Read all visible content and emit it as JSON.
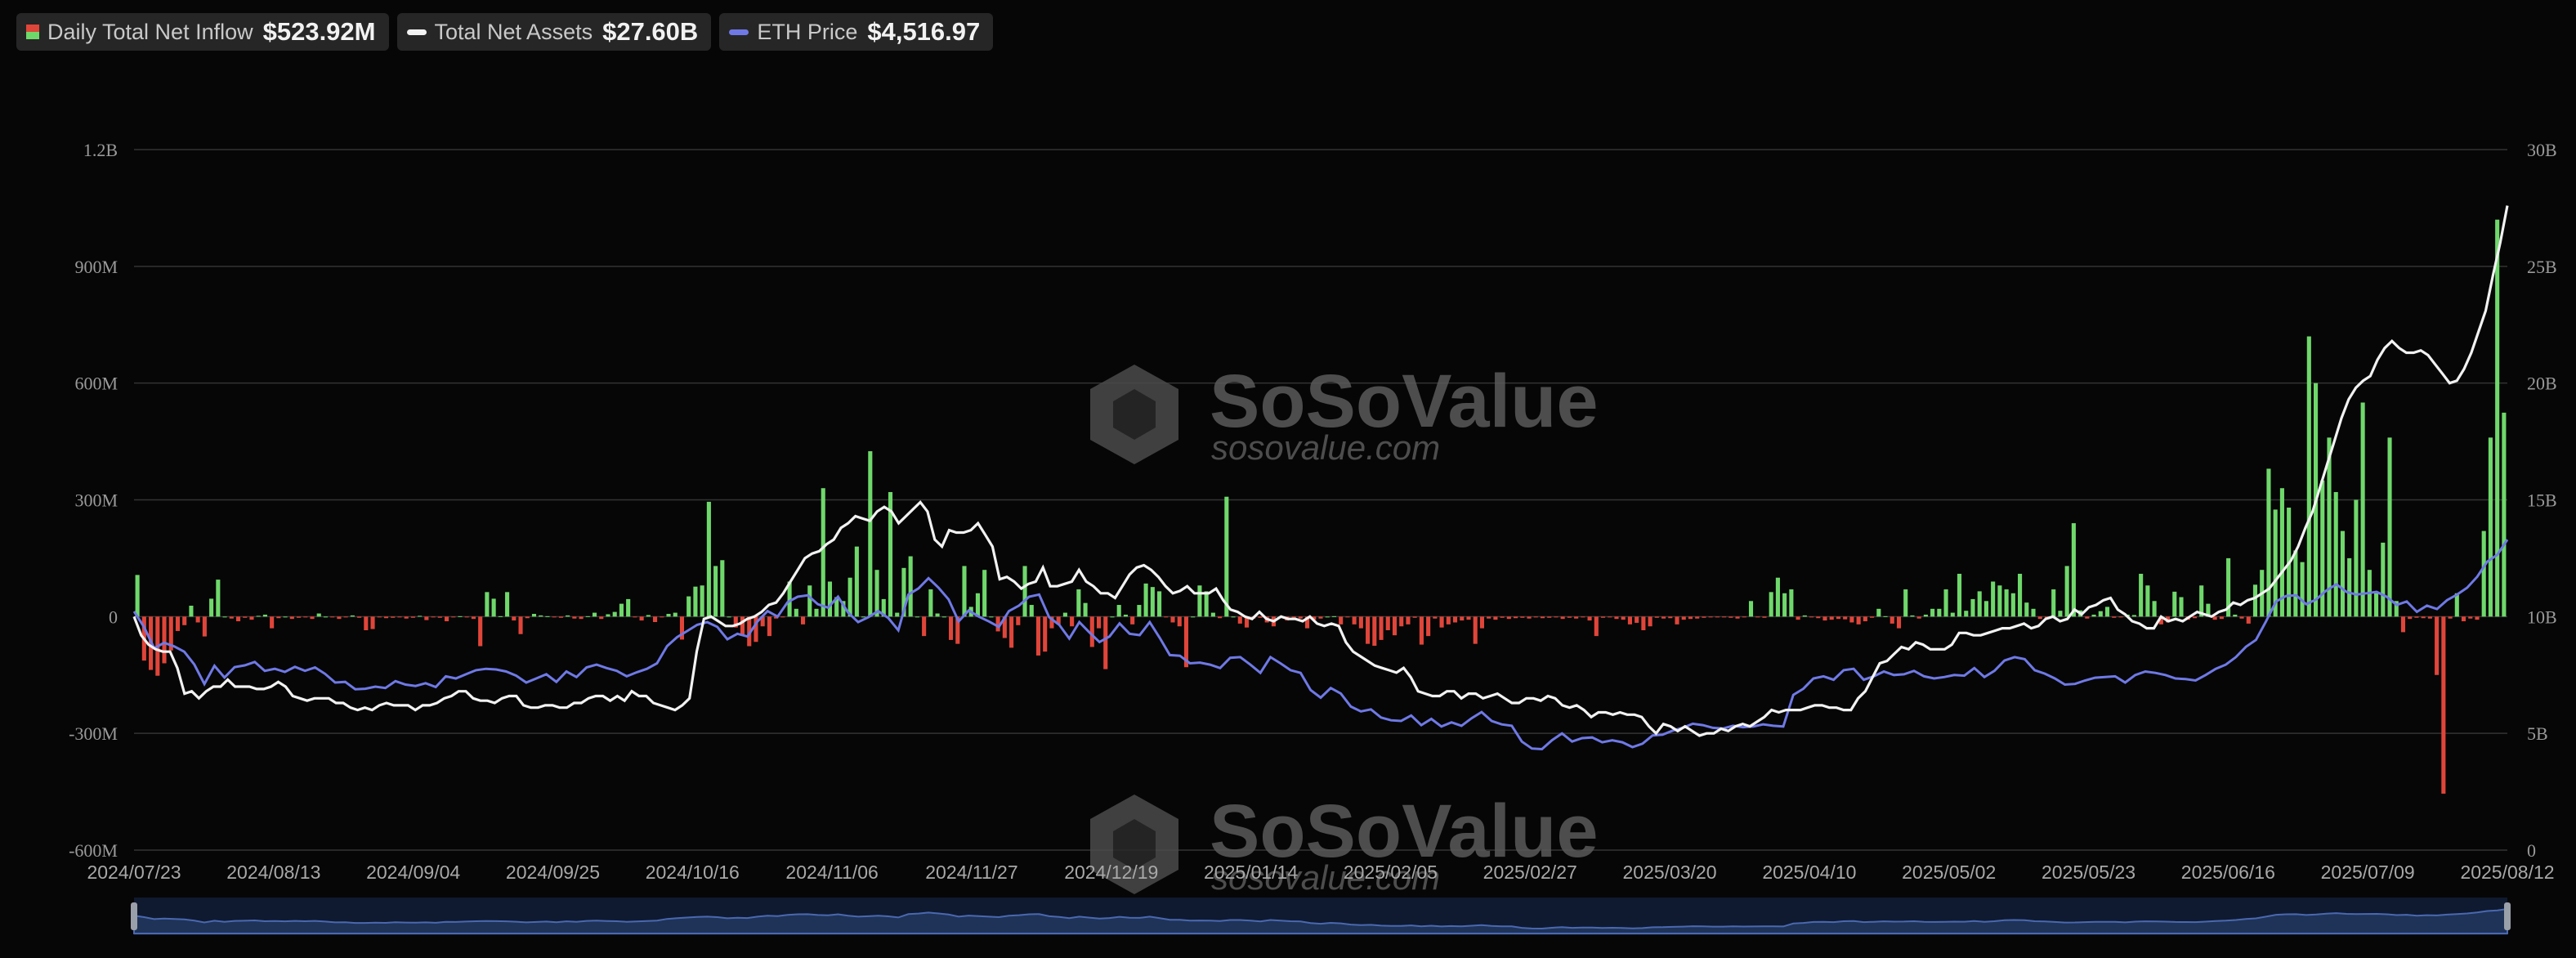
{
  "legend": {
    "inflow_label": "Daily Total Net Inflow",
    "inflow_value": "$523.92M",
    "assets_label": "Total Net Assets",
    "assets_value": "$27.60B",
    "price_label": "ETH Price",
    "price_value": "$4,516.97"
  },
  "watermark": {
    "brand": "SoSoValue",
    "site": "sosovalue.com"
  },
  "colors": {
    "positive": "#6fd86b",
    "negative": "#e0453a",
    "assets_line": "#f2f2f2",
    "price_line": "#6f79e6",
    "navigator_fill": "#1e3357"
  },
  "chart_data": {
    "type": "bar+line",
    "date_range": [
      "2024/07/23",
      "2025/08/12"
    ],
    "x_tick_labels": [
      "2024/07/23",
      "2024/08/13",
      "2024/09/04",
      "2024/09/25",
      "2024/10/16",
      "2024/11/06",
      "2024/11/27",
      "2024/12/19",
      "2025/01/14",
      "2025/02/05",
      "2025/02/27",
      "2025/03/20",
      "2025/04/10",
      "2025/05/02",
      "2025/05/23",
      "2025/06/16",
      "2025/07/09",
      "2025/08/12"
    ],
    "y_left": {
      "ticks": [
        "-600M",
        "-300M",
        "0",
        "300M",
        "600M",
        "900M",
        "1.2B"
      ],
      "range_millions": [
        -600,
        1200
      ]
    },
    "y_right": {
      "ticks": [
        "0",
        "5B",
        "10B",
        "15B",
        "20B",
        "25B",
        "30B"
      ],
      "range_billions": [
        0,
        30
      ]
    },
    "grid": true,
    "legend_position": "top-left",
    "series": [
      {
        "name": "Daily Total Net Inflow",
        "type": "bar",
        "unit": "M USD",
        "values": [
          107,
          -113,
          -137,
          -152,
          -120,
          -87,
          -37,
          -22,
          28,
          -15,
          -51,
          46,
          95,
          0,
          -5,
          -12,
          -3,
          -8,
          2,
          5,
          -30,
          -4,
          0,
          -6,
          -3,
          -2,
          -6,
          8,
          0,
          -2,
          -6,
          -2,
          3,
          -3,
          -35,
          -32,
          -2,
          -4,
          -3,
          -1,
          -5,
          -3,
          2,
          -9,
          -1,
          -3,
          -12,
          -2,
          1,
          -2,
          -6,
          -76,
          63,
          46,
          1,
          63,
          -10,
          -45,
          -4,
          7,
          3,
          1,
          -2,
          -3,
          3,
          -5,
          -6,
          1,
          10,
          -6,
          6,
          12,
          33,
          45,
          -1,
          -10,
          4,
          -14,
          -2,
          7,
          10,
          -59,
          52,
          77,
          80,
          295,
          130,
          145,
          0,
          -28,
          -46,
          -76,
          -65,
          -25,
          -50,
          -5,
          -1,
          90,
          20,
          -20,
          80,
          20,
          330,
          90,
          50,
          40,
          100,
          180,
          0,
          425,
          120,
          45,
          320,
          10,
          125,
          155,
          0,
          -50,
          70,
          8,
          0,
          -60,
          -70,
          130,
          25,
          60,
          120,
          0,
          -38,
          -55,
          -80,
          -22,
          130,
          30,
          -100,
          -90,
          -30,
          -20,
          10,
          -25,
          70,
          35,
          -78,
          -30,
          -135,
          0,
          30,
          5,
          -20,
          30,
          85,
          76,
          65,
          -2,
          -15,
          -25,
          -130,
          0,
          80,
          65,
          10,
          -4,
          308,
          0,
          -18,
          -28,
          -5,
          -3,
          -15,
          -25,
          -3,
          -10,
          -7,
          -5,
          -30,
          -8,
          -5,
          0,
          1,
          -20,
          -2,
          -20,
          -30,
          -70,
          -75,
          -60,
          -35,
          -48,
          -25,
          -20,
          -3,
          -72,
          -50,
          -5,
          -28,
          -20,
          -15,
          -10,
          -8,
          -70,
          -30,
          -5,
          -8,
          -3,
          -6,
          -4,
          -3,
          -5,
          -2,
          -4,
          -3,
          -2,
          -6,
          -3,
          -5,
          -2,
          -10,
          -50,
          -3,
          -2,
          -6,
          -8,
          -20,
          -16,
          -35,
          -25,
          -3,
          -5,
          -4,
          -20,
          -8,
          -6,
          -5,
          -3,
          -2,
          -1,
          -2,
          -3,
          -5,
          -1,
          40,
          -2,
          -3,
          63,
          100,
          60,
          70,
          -8,
          3,
          -2,
          -4,
          -10,
          -8,
          -6,
          -7,
          -15,
          -20,
          -12,
          -3,
          20,
          1,
          -18,
          -30,
          70,
          3,
          -5,
          5,
          20,
          20,
          70,
          10,
          110,
          15,
          45,
          65,
          40,
          90,
          80,
          70,
          60,
          110,
          36,
          20,
          -6,
          -4,
          70,
          15,
          130,
          240,
          16,
          -5,
          5,
          14,
          25,
          -3,
          -1,
          5,
          4,
          110,
          80,
          40,
          -20,
          -15,
          64,
          50,
          -8,
          -4,
          80,
          33,
          -8,
          -6,
          150,
          5,
          -5,
          -18,
          82,
          120,
          380,
          275,
          330,
          280,
          170,
          140,
          720,
          600,
          350,
          460,
          320,
          220,
          150,
          300,
          550,
          120,
          60,
          190,
          460,
          40,
          -40,
          -6,
          -3,
          -4,
          -5,
          -150,
          -455,
          -5,
          60,
          -12,
          -5,
          -8,
          220,
          460,
          1020,
          524
        ]
      },
      {
        "name": "Total Net Assets",
        "type": "line",
        "unit": "B USD",
        "values": [
          10.0,
          9.2,
          8.8,
          8.6,
          8.5,
          8.5,
          7.8,
          6.7,
          6.8,
          6.5,
          6.8,
          7.0,
          7.0,
          7.3,
          7.0,
          7.0,
          7.0,
          6.9,
          6.9,
          7.0,
          7.2,
          7.0,
          6.6,
          6.5,
          6.4,
          6.5,
          6.5,
          6.5,
          6.3,
          6.3,
          6.1,
          6.0,
          6.1,
          6.0,
          6.2,
          6.3,
          6.2,
          6.2,
          6.2,
          6.0,
          6.2,
          6.2,
          6.3,
          6.5,
          6.6,
          6.8,
          6.8,
          6.5,
          6.4,
          6.4,
          6.3,
          6.5,
          6.6,
          6.6,
          6.2,
          6.1,
          6.1,
          6.2,
          6.2,
          6.1,
          6.1,
          6.3,
          6.3,
          6.5,
          6.6,
          6.6,
          6.4,
          6.6,
          6.4,
          6.8,
          6.6,
          6.6,
          6.3,
          6.2,
          6.1,
          6.0,
          6.2,
          6.5,
          8.5,
          9.9,
          10.0,
          9.8,
          9.6,
          9.6,
          9.7,
          9.9,
          10.0,
          10.2,
          10.5,
          10.6,
          11.0,
          11.5,
          12.0,
          12.5,
          12.7,
          12.8,
          13.1,
          13.3,
          13.8,
          14.0,
          14.3,
          14.2,
          14.1,
          14.5,
          14.7,
          14.5,
          14.0,
          14.3,
          14.6,
          14.9,
          14.5,
          13.3,
          13.0,
          13.7,
          13.6,
          13.6,
          13.7,
          14.0,
          13.5,
          13.0,
          11.6,
          11.7,
          11.5,
          11.2,
          11.4,
          11.5,
          12.1,
          11.3,
          11.3,
          11.4,
          11.5,
          12.0,
          11.5,
          11.3,
          11.0,
          11.0,
          10.8,
          11.3,
          11.8,
          12.1,
          12.2,
          12.0,
          11.7,
          11.3,
          11.0,
          11.1,
          11.3,
          11.0,
          11.0,
          11.0,
          11.2,
          10.7,
          10.3,
          10.2,
          10.0,
          9.9,
          10.2,
          9.9,
          9.8,
          10.0,
          9.9,
          9.9,
          9.8,
          10.0,
          9.7,
          9.6,
          9.7,
          9.6,
          8.9,
          8.5,
          8.3,
          8.1,
          7.9,
          7.8,
          7.7,
          7.6,
          7.8,
          7.4,
          6.8,
          6.7,
          6.6,
          6.6,
          6.8,
          6.8,
          6.5,
          6.7,
          6.7,
          6.5,
          6.6,
          6.7,
          6.5,
          6.3,
          6.3,
          6.5,
          6.5,
          6.4,
          6.6,
          6.5,
          6.2,
          6.1,
          6.2,
          6.0,
          5.7,
          5.9,
          5.9,
          5.8,
          5.9,
          5.8,
          5.8,
          5.7,
          5.3,
          5.0,
          5.4,
          5.3,
          5.1,
          5.3,
          5.1,
          4.9,
          5.0,
          5.0,
          5.2,
          5.1,
          5.3,
          5.4,
          5.3,
          5.5,
          5.7,
          6.0,
          5.9,
          6.0,
          6.0,
          6.0,
          6.1,
          6.2,
          6.2,
          6.1,
          6.1,
          6.0,
          6.0,
          6.5,
          6.8,
          7.4,
          8.0,
          8.1,
          8.4,
          8.7,
          8.6,
          8.9,
          8.8,
          8.6,
          8.6,
          8.6,
          8.8,
          9.3,
          9.3,
          9.2,
          9.2,
          9.3,
          9.4,
          9.5,
          9.5,
          9.6,
          9.7,
          9.5,
          9.6,
          9.9,
          10.0,
          9.8,
          9.9,
          10.3,
          10.1,
          10.4,
          10.5,
          10.7,
          10.8,
          10.3,
          10.1,
          9.8,
          9.7,
          9.5,
          9.5,
          10.0,
          9.8,
          9.9,
          9.8,
          10.0,
          10.2,
          10.1,
          10.0,
          10.2,
          10.3,
          10.6,
          10.5,
          10.7,
          10.8,
          11.0,
          11.2,
          11.6,
          12.0,
          12.4,
          13.0,
          13.8,
          14.5,
          15.5,
          16.5,
          17.5,
          18.5,
          19.3,
          19.8,
          20.1,
          20.3,
          21.0,
          21.5,
          21.8,
          21.5,
          21.3,
          21.3,
          21.4,
          21.2,
          20.8,
          20.4,
          20.0,
          20.1,
          20.6,
          21.3,
          22.2,
          23.1,
          24.6,
          26.0,
          27.6
        ]
      },
      {
        "name": "ETH Price",
        "type": "line",
        "unit": "USD",
        "values": [
          3475,
          3248,
          2940,
          3018,
          2966,
          2889,
          2702,
          2418,
          2684,
          2512,
          2665,
          2690,
          2740,
          2610,
          2640,
          2595,
          2668,
          2610,
          2660,
          2566,
          2440,
          2450,
          2342,
          2350,
          2380,
          2360,
          2460,
          2410,
          2390,
          2430,
          2375,
          2530,
          2500,
          2560,
          2620,
          2640,
          2630,
          2600,
          2540,
          2440,
          2500,
          2560,
          2450,
          2600,
          2520,
          2660,
          2700,
          2650,
          2610,
          2530,
          2590,
          2640,
          2720,
          2970,
          3100,
          3190,
          3280,
          3320,
          3250,
          3070,
          3150,
          3110,
          3330,
          3480,
          3400,
          3610,
          3690,
          3710,
          3580,
          3530,
          3690,
          3460,
          3320,
          3390,
          3480,
          3380,
          3200,
          3720,
          3810,
          3960,
          3820,
          3650,
          3330,
          3490,
          3400,
          3330,
          3250,
          3480,
          3560,
          3690,
          3720,
          3390,
          3280,
          3080,
          3320,
          3170,
          3030,
          3110,
          3300,
          3150,
          3130,
          3320,
          3090,
          2840,
          2830,
          2720,
          2730,
          2700,
          2650,
          2800,
          2810,
          2700,
          2580,
          2810,
          2720,
          2620,
          2580,
          2330,
          2220,
          2360,
          2280,
          2090,
          2020,
          2050,
          1930,
          1890,
          1880,
          1960,
          1820,
          1910,
          1800,
          1860,
          1810,
          1920,
          2010,
          1880,
          1830,
          1810,
          1580,
          1480,
          1470,
          1600,
          1700,
          1580,
          1630,
          1640,
          1570,
          1600,
          1570,
          1500,
          1550,
          1670,
          1680,
          1740,
          1780,
          1840,
          1820,
          1780,
          1770,
          1810,
          1790,
          1800,
          1830,
          1810,
          1800,
          2260,
          2350,
          2500,
          2530,
          2480,
          2620,
          2640,
          2480,
          2530,
          2600,
          2550,
          2560,
          2610,
          2530,
          2500,
          2520,
          2550,
          2540,
          2650,
          2520,
          2610,
          2760,
          2810,
          2780,
          2620,
          2570,
          2500,
          2410,
          2420,
          2470,
          2510,
          2520,
          2530,
          2440,
          2550,
          2600,
          2580,
          2550,
          2500,
          2490,
          2470,
          2550,
          2640,
          2700,
          2810,
          2960,
          3060,
          3330,
          3620,
          3700,
          3710,
          3580,
          3650,
          3780,
          3870,
          3760,
          3720,
          3740,
          3760,
          3690,
          3570,
          3620,
          3470,
          3560,
          3510,
          3640,
          3720,
          3820,
          3980,
          4200,
          4300,
          4520
        ],
        "note_axis": ""
      }
    ]
  }
}
